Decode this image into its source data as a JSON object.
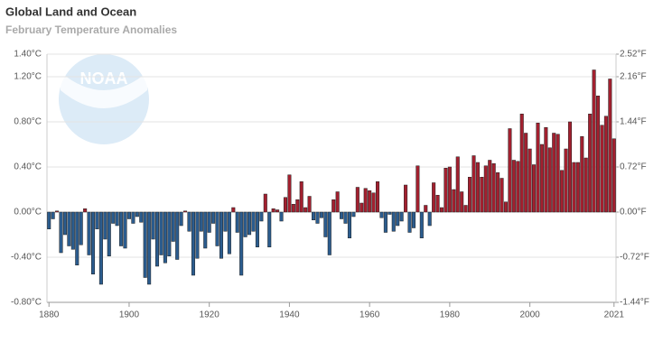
{
  "chart_data": {
    "type": "bar",
    "title": "Global Land and Ocean",
    "subtitle": "February Temperature Anomalies",
    "logo_text": "NOAA",
    "x": [
      1880,
      1881,
      1882,
      1883,
      1884,
      1885,
      1886,
      1887,
      1888,
      1889,
      1890,
      1891,
      1892,
      1893,
      1894,
      1895,
      1896,
      1897,
      1898,
      1899,
      1900,
      1901,
      1902,
      1903,
      1904,
      1905,
      1906,
      1907,
      1908,
      1909,
      1910,
      1911,
      1912,
      1913,
      1914,
      1915,
      1916,
      1917,
      1918,
      1919,
      1920,
      1921,
      1922,
      1923,
      1924,
      1925,
      1926,
      1927,
      1928,
      1929,
      1930,
      1931,
      1932,
      1933,
      1934,
      1935,
      1936,
      1937,
      1938,
      1939,
      1940,
      1941,
      1942,
      1943,
      1944,
      1945,
      1946,
      1947,
      1948,
      1949,
      1950,
      1951,
      1952,
      1953,
      1954,
      1955,
      1956,
      1957,
      1958,
      1959,
      1960,
      1961,
      1962,
      1963,
      1964,
      1965,
      1966,
      1967,
      1968,
      1969,
      1970,
      1971,
      1972,
      1973,
      1974,
      1975,
      1976,
      1977,
      1978,
      1979,
      1980,
      1981,
      1982,
      1983,
      1984,
      1985,
      1986,
      1987,
      1988,
      1989,
      1990,
      1991,
      1992,
      1993,
      1994,
      1995,
      1996,
      1997,
      1998,
      1999,
      2000,
      2001,
      2002,
      2003,
      2004,
      2005,
      2006,
      2007,
      2008,
      2009,
      2010,
      2011,
      2012,
      2013,
      2014,
      2015,
      2016,
      2017,
      2018,
      2019,
      2020,
      2021
    ],
    "values": [
      -0.15,
      -0.06,
      0.01,
      -0.36,
      -0.2,
      -0.3,
      -0.33,
      -0.47,
      -0.29,
      0.03,
      -0.38,
      -0.55,
      -0.15,
      -0.64,
      -0.24,
      -0.39,
      -0.1,
      -0.12,
      -0.3,
      -0.32,
      -0.06,
      -0.1,
      -0.04,
      -0.09,
      -0.58,
      -0.64,
      -0.24,
      -0.48,
      -0.38,
      -0.45,
      -0.39,
      -0.26,
      -0.42,
      -0.12,
      0.01,
      -0.17,
      -0.56,
      -0.41,
      -0.17,
      -0.32,
      -0.18,
      -0.1,
      -0.3,
      -0.41,
      -0.17,
      -0.37,
      0.04,
      -0.18,
      -0.56,
      -0.22,
      -0.2,
      -0.17,
      -0.31,
      -0.08,
      0.16,
      -0.31,
      0.03,
      0.02,
      -0.08,
      0.13,
      0.33,
      0.07,
      0.11,
      0.27,
      0.04,
      0.14,
      -0.07,
      -0.1,
      -0.05,
      -0.22,
      -0.38,
      0.11,
      0.18,
      -0.06,
      -0.1,
      -0.23,
      -0.04,
      0.22,
      0.08,
      0.21,
      0.19,
      0.17,
      0.27,
      -0.05,
      -0.18,
      -0.02,
      -0.17,
      -0.12,
      -0.08,
      0.24,
      -0.18,
      -0.14,
      0.41,
      -0.23,
      0.06,
      -0.12,
      0.26,
      0.15,
      0.04,
      0.39,
      0.4,
      0.2,
      0.49,
      0.18,
      0.06,
      0.31,
      0.5,
      0.44,
      0.31,
      0.41,
      0.46,
      0.43,
      0.35,
      0.3,
      0.09,
      0.74,
      0.46,
      0.45,
      0.87,
      0.7,
      0.56,
      0.42,
      0.79,
      0.6,
      0.75,
      0.57,
      0.7,
      0.69,
      0.37,
      0.56,
      0.8,
      0.44,
      0.44,
      0.67,
      0.48,
      0.87,
      1.26,
      1.03,
      0.77,
      0.85,
      1.18,
      0.65
    ],
    "positive_color": "#a3202f",
    "negative_color": "#2b5c8e",
    "xlim": [
      1879.5,
      2021.5
    ],
    "xticks": [
      1880,
      1900,
      1920,
      1940,
      1960,
      1980,
      2000,
      2021
    ],
    "ylim": [
      -0.8,
      1.4
    ],
    "yticks": [
      {
        "value": -0.8,
        "label": "-0.80°C"
      },
      {
        "value": -0.4,
        "label": "-0.40°C"
      },
      {
        "value": 0,
        "label": "0.00°C"
      },
      {
        "value": 0.4,
        "label": "0.40°C"
      },
      {
        "value": 0.8,
        "label": "0.80°C"
      },
      {
        "value": 1.2,
        "label": "1.20°C"
      },
      {
        "value": 1.4,
        "label": "1.40°C"
      }
    ],
    "y2lim": [
      -1.44,
      2.52
    ],
    "y2ticks": [
      {
        "value": -1.44,
        "label": "-1.44°F"
      },
      {
        "value": -0.72,
        "label": "-0.72°F"
      },
      {
        "value": 0,
        "label": "0.00°F"
      },
      {
        "value": 0.72,
        "label": "0.72°F"
      },
      {
        "value": 1.44,
        "label": "1.44°F"
      },
      {
        "value": 2.16,
        "label": "2.16°F"
      },
      {
        "value": 2.52,
        "label": "2.52°F"
      }
    ],
    "grid": true
  }
}
